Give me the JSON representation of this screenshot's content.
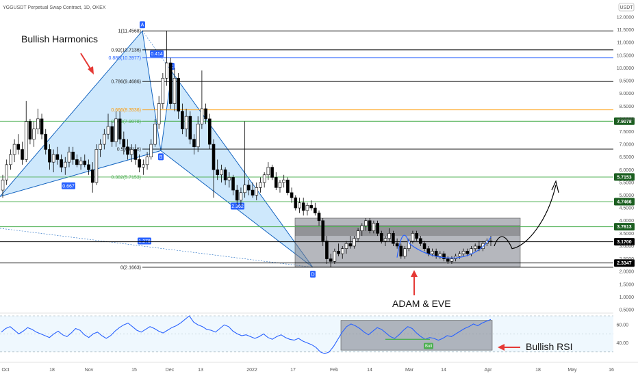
{
  "header": {
    "title": "YGGUSDT Perpetual Swap Contract, 1D, OKEX",
    "currency": "USDT"
  },
  "chart_data": {
    "type": "candlestick",
    "price_axis_ticks": [
      "12.0000",
      "11.5000",
      "11.0000",
      "10.5000",
      "10.0000",
      "9.5000",
      "9.0000",
      "8.5000",
      "8.0000",
      "7.5000",
      "7.0000",
      "6.5000",
      "6.0000",
      "5.5000",
      "5.0000",
      "4.5000",
      "4.0000",
      "3.5000",
      "3.0000",
      "2.5000",
      "2.0000",
      "1.5000",
      "1.0000",
      "0.5000"
    ],
    "rsi_axis_ticks": [
      "60.00",
      "40.00"
    ],
    "x_axis_ticks": [
      "Oct",
      "18",
      "Nov",
      "15",
      "Dec",
      "13",
      "2022",
      "17",
      "Feb",
      "14",
      "Mar",
      "14",
      "Apr",
      "18",
      "May",
      "16"
    ],
    "fib_levels": [
      {
        "label": "1(11.4568)",
        "price": 11.4568,
        "color": "#000000"
      },
      {
        "label": "0.92(10.7136)",
        "price": 10.7136,
        "color": "#000000"
      },
      {
        "label": "0.886(10.3977)",
        "price": 10.3977,
        "color": "#2962ff"
      },
      {
        "label": "0.786(9.4686)",
        "price": 9.4686,
        "color": "#000000"
      },
      {
        "label": "0.666(8.3536)",
        "price": 8.3536,
        "color": "#ff9800"
      },
      {
        "label": "0.618(7.9078)",
        "price": 7.9078,
        "color": "#4caf50"
      },
      {
        "label": "0.5(6.8116)",
        "price": 6.8116,
        "color": "#000000"
      },
      {
        "label": "0.382(5.7153)",
        "price": 5.7153,
        "color": "#4caf50"
      },
      {
        "label": "0(2.1663)",
        "price": 2.1663,
        "color": "#000000"
      }
    ],
    "horizontal_levels": [
      {
        "price": 7.9078,
        "label": "7.9078",
        "color": "#4caf50",
        "badge": "#1b5e20"
      },
      {
        "price": 5.7153,
        "label": "5.7153",
        "color": "#4caf50",
        "badge": "#1b5e20"
      },
      {
        "price": 4.7466,
        "label": "4.7466",
        "color": "#4caf50",
        "badge": "#1b5e20"
      },
      {
        "price": 3.7613,
        "label": "3.7613",
        "color": "#4caf50",
        "badge": "#1b5e20"
      },
      {
        "price": 3.17,
        "label": "3.1700",
        "color": "#000000",
        "badge": "#000000"
      },
      {
        "price": 2.3347,
        "label": "2.3347",
        "color": "#000000",
        "badge": "#000000"
      }
    ],
    "pattern_points": [
      "X",
      "A",
      "B",
      "C",
      "D"
    ],
    "ratio_labels": [
      "0.667",
      "2.362",
      "1.278",
      "0.414"
    ],
    "candles": [
      {
        "o": 5.2,
        "h": 5.8,
        "l": 4.9,
        "c": 5.6
      },
      {
        "o": 5.6,
        "h": 6.4,
        "l": 5.4,
        "c": 6.2
      },
      {
        "o": 6.2,
        "h": 6.8,
        "l": 6.0,
        "c": 6.6
      },
      {
        "o": 6.6,
        "h": 7.2,
        "l": 6.3,
        "c": 7.0
      },
      {
        "o": 7.0,
        "h": 7.4,
        "l": 6.6,
        "c": 6.8
      },
      {
        "o": 6.8,
        "h": 7.1,
        "l": 6.2,
        "c": 6.4
      },
      {
        "o": 6.4,
        "h": 8.7,
        "l": 6.3,
        "c": 7.9
      },
      {
        "o": 7.9,
        "h": 8.0,
        "l": 7.0,
        "c": 7.2
      },
      {
        "o": 7.2,
        "h": 7.9,
        "l": 6.9,
        "c": 7.6
      },
      {
        "o": 7.6,
        "h": 8.4,
        "l": 7.4,
        "c": 8.0
      },
      {
        "o": 8.0,
        "h": 8.2,
        "l": 7.2,
        "c": 7.4
      },
      {
        "o": 7.4,
        "h": 7.6,
        "l": 6.6,
        "c": 6.8
      },
      {
        "o": 6.8,
        "h": 7.0,
        "l": 6.0,
        "c": 6.3
      },
      {
        "o": 6.3,
        "h": 6.8,
        "l": 5.9,
        "c": 6.6
      },
      {
        "o": 6.6,
        "h": 6.9,
        "l": 6.2,
        "c": 6.4
      },
      {
        "o": 6.4,
        "h": 6.6,
        "l": 5.9,
        "c": 6.1
      },
      {
        "o": 6.1,
        "h": 6.5,
        "l": 5.8,
        "c": 6.3
      },
      {
        "o": 6.3,
        "h": 6.9,
        "l": 6.1,
        "c": 6.7
      },
      {
        "o": 6.7,
        "h": 6.9,
        "l": 6.2,
        "c": 6.4
      },
      {
        "o": 6.4,
        "h": 6.6,
        "l": 6.1,
        "c": 6.2
      },
      {
        "o": 6.2,
        "h": 6.5,
        "l": 6.0,
        "c": 6.35
      },
      {
        "o": 6.35,
        "h": 6.6,
        "l": 6.1,
        "c": 6.2
      },
      {
        "o": 6.2,
        "h": 6.4,
        "l": 5.8,
        "c": 6.0
      },
      {
        "o": 6.0,
        "h": 6.3,
        "l": 5.1,
        "c": 5.5
      },
      {
        "o": 5.5,
        "h": 7.0,
        "l": 5.4,
        "c": 6.8
      },
      {
        "o": 6.8,
        "h": 7.2,
        "l": 6.5,
        "c": 7.0
      },
      {
        "o": 7.0,
        "h": 7.6,
        "l": 6.8,
        "c": 7.4
      },
      {
        "o": 7.4,
        "h": 8.2,
        "l": 7.2,
        "c": 7.7
      },
      {
        "o": 7.7,
        "h": 7.9,
        "l": 6.9,
        "c": 7.1
      },
      {
        "o": 7.1,
        "h": 8.3,
        "l": 6.9,
        "c": 8.0
      },
      {
        "o": 8.0,
        "h": 8.3,
        "l": 7.0,
        "c": 7.2
      },
      {
        "o": 7.2,
        "h": 7.5,
        "l": 6.6,
        "c": 6.9
      },
      {
        "o": 6.9,
        "h": 7.2,
        "l": 6.4,
        "c": 6.6
      },
      {
        "o": 6.6,
        "h": 7.0,
        "l": 6.3,
        "c": 6.8
      },
      {
        "o": 6.8,
        "h": 7.0,
        "l": 6.2,
        "c": 6.4
      },
      {
        "o": 6.4,
        "h": 6.6,
        "l": 5.9,
        "c": 6.1
      },
      {
        "o": 6.1,
        "h": 6.4,
        "l": 5.8,
        "c": 6.2
      },
      {
        "o": 6.2,
        "h": 6.7,
        "l": 6.0,
        "c": 6.5
      },
      {
        "o": 6.5,
        "h": 7.2,
        "l": 6.4,
        "c": 7.0
      },
      {
        "o": 7.0,
        "h": 8.0,
        "l": 6.9,
        "c": 7.8
      },
      {
        "o": 7.8,
        "h": 8.9,
        "l": 7.6,
        "c": 8.6
      },
      {
        "o": 8.6,
        "h": 9.8,
        "l": 8.4,
        "c": 9.6
      },
      {
        "o": 9.6,
        "h": 11.4568,
        "l": 9.3,
        "c": 10.2
      },
      {
        "o": 10.2,
        "h": 10.4,
        "l": 8.4,
        "c": 8.6
      },
      {
        "o": 8.6,
        "h": 10.0,
        "l": 8.3,
        "c": 9.6
      },
      {
        "o": 9.6,
        "h": 9.8,
        "l": 8.0,
        "c": 8.3
      },
      {
        "o": 8.3,
        "h": 8.6,
        "l": 7.4,
        "c": 7.6
      },
      {
        "o": 7.6,
        "h": 8.4,
        "l": 7.3,
        "c": 8.1
      },
      {
        "o": 8.1,
        "h": 8.3,
        "l": 7.0,
        "c": 7.2
      },
      {
        "o": 7.2,
        "h": 7.4,
        "l": 6.6,
        "c": 6.9
      },
      {
        "o": 6.9,
        "h": 8.1,
        "l": 6.7,
        "c": 7.8
      },
      {
        "o": 7.8,
        "h": 9.9,
        "l": 7.6,
        "c": 8.4
      },
      {
        "o": 8.4,
        "h": 8.6,
        "l": 7.8,
        "c": 8.0
      },
      {
        "o": 8.0,
        "h": 8.2,
        "l": 6.8,
        "c": 7.0
      },
      {
        "o": 7.0,
        "h": 7.2,
        "l": 4.9,
        "c": 6.0
      },
      {
        "o": 6.0,
        "h": 6.4,
        "l": 5.6,
        "c": 5.8
      },
      {
        "o": 5.8,
        "h": 6.2,
        "l": 5.5,
        "c": 6.0
      },
      {
        "o": 6.0,
        "h": 6.1,
        "l": 5.4,
        "c": 5.6
      },
      {
        "o": 5.6,
        "h": 5.9,
        "l": 5.3,
        "c": 5.7
      },
      {
        "o": 5.7,
        "h": 5.8,
        "l": 5.0,
        "c": 5.2
      },
      {
        "o": 5.2,
        "h": 5.4,
        "l": 4.6,
        "c": 4.8
      },
      {
        "o": 4.8,
        "h": 5.3,
        "l": 4.6,
        "c": 5.1
      },
      {
        "o": 5.1,
        "h": 7.9,
        "l": 4.9,
        "c": 5.4
      },
      {
        "o": 5.4,
        "h": 5.6,
        "l": 5.0,
        "c": 5.2
      },
      {
        "o": 5.2,
        "h": 5.5,
        "l": 4.9,
        "c": 5.0
      },
      {
        "o": 5.0,
        "h": 5.5,
        "l": 4.8,
        "c": 5.3
      },
      {
        "o": 5.3,
        "h": 5.7,
        "l": 5.1,
        "c": 5.5
      },
      {
        "o": 5.5,
        "h": 5.9,
        "l": 5.3,
        "c": 5.8
      },
      {
        "o": 5.8,
        "h": 6.3,
        "l": 5.6,
        "c": 6.1
      },
      {
        "o": 6.1,
        "h": 6.2,
        "l": 5.6,
        "c": 5.7
      },
      {
        "o": 5.7,
        "h": 5.9,
        "l": 5.2,
        "c": 5.3
      },
      {
        "o": 5.3,
        "h": 5.6,
        "l": 5.1,
        "c": 5.5
      },
      {
        "o": 5.5,
        "h": 5.8,
        "l": 5.3,
        "c": 5.6
      },
      {
        "o": 5.6,
        "h": 5.7,
        "l": 5.0,
        "c": 5.1
      },
      {
        "o": 5.1,
        "h": 5.3,
        "l": 4.7,
        "c": 4.9
      },
      {
        "o": 4.9,
        "h": 5.0,
        "l": 4.4,
        "c": 4.5
      },
      {
        "o": 4.5,
        "h": 4.9,
        "l": 4.3,
        "c": 4.7
      },
      {
        "o": 4.7,
        "h": 4.9,
        "l": 4.2,
        "c": 4.4
      },
      {
        "o": 4.4,
        "h": 4.7,
        "l": 4.2,
        "c": 4.6
      },
      {
        "o": 4.6,
        "h": 4.8,
        "l": 4.4,
        "c": 4.5
      },
      {
        "o": 4.5,
        "h": 4.7,
        "l": 4.2,
        "c": 4.3
      },
      {
        "o": 4.3,
        "h": 4.4,
        "l": 3.8,
        "c": 4.0
      },
      {
        "o": 4.0,
        "h": 4.1,
        "l": 3.0,
        "c": 3.2
      },
      {
        "o": 3.2,
        "h": 3.4,
        "l": 2.3,
        "c": 2.5
      },
      {
        "o": 2.5,
        "h": 2.7,
        "l": 2.1663,
        "c": 2.4
      },
      {
        "o": 2.4,
        "h": 2.9,
        "l": 2.3,
        "c": 2.8
      },
      {
        "o": 2.8,
        "h": 3.1,
        "l": 2.6,
        "c": 2.7
      },
      {
        "o": 2.7,
        "h": 3.0,
        "l": 2.5,
        "c": 2.9
      },
      {
        "o": 2.9,
        "h": 3.2,
        "l": 2.7,
        "c": 3.1
      },
      {
        "o": 3.1,
        "h": 3.4,
        "l": 2.9,
        "c": 3.0
      },
      {
        "o": 3.0,
        "h": 3.4,
        "l": 2.9,
        "c": 3.3
      },
      {
        "o": 3.3,
        "h": 3.7,
        "l": 3.2,
        "c": 3.6
      },
      {
        "o": 3.6,
        "h": 3.9,
        "l": 3.4,
        "c": 3.8
      },
      {
        "o": 3.8,
        "h": 4.1,
        "l": 3.6,
        "c": 4.0
      },
      {
        "o": 4.0,
        "h": 4.1,
        "l": 3.5,
        "c": 3.6
      },
      {
        "o": 3.6,
        "h": 4.0,
        "l": 3.5,
        "c": 3.9
      },
      {
        "o": 3.9,
        "h": 4.0,
        "l": 3.4,
        "c": 3.5
      },
      {
        "o": 3.5,
        "h": 3.6,
        "l": 3.1,
        "c": 3.2
      },
      {
        "o": 3.2,
        "h": 3.4,
        "l": 3.0,
        "c": 3.3
      },
      {
        "o": 3.3,
        "h": 3.7,
        "l": 3.2,
        "c": 3.5
      },
      {
        "o": 3.5,
        "h": 3.6,
        "l": 3.0,
        "c": 3.1
      },
      {
        "o": 3.1,
        "h": 3.3,
        "l": 2.9,
        "c": 3.0
      },
      {
        "o": 3.0,
        "h": 3.1,
        "l": 2.5,
        "c": 2.6
      },
      {
        "o": 2.6,
        "h": 3.0,
        "l": 2.5,
        "c": 2.9
      },
      {
        "o": 2.9,
        "h": 3.3,
        "l": 2.8,
        "c": 3.2
      },
      {
        "o": 3.2,
        "h": 3.6,
        "l": 3.1,
        "c": 3.5
      },
      {
        "o": 3.5,
        "h": 3.6,
        "l": 3.2,
        "c": 3.3
      },
      {
        "o": 3.3,
        "h": 3.4,
        "l": 3.0,
        "c": 3.1
      },
      {
        "o": 3.1,
        "h": 3.2,
        "l": 2.8,
        "c": 2.9
      },
      {
        "o": 2.9,
        "h": 3.0,
        "l": 2.6,
        "c": 2.7
      },
      {
        "o": 2.7,
        "h": 2.9,
        "l": 2.6,
        "c": 2.8
      },
      {
        "o": 2.8,
        "h": 2.9,
        "l": 2.5,
        "c": 2.6
      },
      {
        "o": 2.6,
        "h": 2.8,
        "l": 2.5,
        "c": 2.7
      },
      {
        "o": 2.7,
        "h": 2.8,
        "l": 2.4,
        "c": 2.5
      },
      {
        "o": 2.5,
        "h": 2.6,
        "l": 2.3,
        "c": 2.4
      },
      {
        "o": 2.4,
        "h": 2.6,
        "l": 2.3,
        "c": 2.5
      },
      {
        "o": 2.5,
        "h": 2.7,
        "l": 2.4,
        "c": 2.6
      },
      {
        "o": 2.6,
        "h": 2.8,
        "l": 2.5,
        "c": 2.7
      },
      {
        "o": 2.7,
        "h": 2.9,
        "l": 2.6,
        "c": 2.8
      },
      {
        "o": 2.8,
        "h": 2.9,
        "l": 2.6,
        "c": 2.7
      },
      {
        "o": 2.7,
        "h": 3.0,
        "l": 2.6,
        "c": 2.9
      },
      {
        "o": 2.9,
        "h": 3.1,
        "l": 2.8,
        "c": 3.0
      },
      {
        "o": 3.0,
        "h": 3.2,
        "l": 2.8,
        "c": 2.9
      },
      {
        "o": 2.9,
        "h": 3.2,
        "l": 2.8,
        "c": 3.1
      },
      {
        "o": 3.1,
        "h": 3.3,
        "l": 3.0,
        "c": 3.2
      },
      {
        "o": 3.2,
        "h": 3.4,
        "l": 3.0,
        "c": 3.17
      }
    ],
    "rsi_values": [
      52,
      56,
      58,
      54,
      50,
      53,
      57,
      55,
      52,
      50,
      48,
      46,
      50,
      53,
      49,
      47,
      51,
      56,
      54,
      49,
      46,
      50,
      52,
      48,
      45,
      48,
      53,
      57,
      60,
      62,
      58,
      54,
      52,
      55,
      58,
      56,
      53,
      51,
      54,
      57,
      59,
      62,
      66,
      70,
      63,
      60,
      58,
      55,
      54,
      52,
      56,
      60,
      58,
      53,
      50,
      48,
      49,
      47,
      45,
      47,
      50,
      46,
      44,
      47,
      49,
      46,
      44,
      43,
      45,
      42,
      40,
      38,
      35,
      30,
      28,
      30,
      36,
      44,
      52,
      58,
      61,
      59,
      56,
      52,
      49,
      53,
      57,
      55,
      51,
      47,
      45,
      49,
      54,
      58,
      56,
      51,
      47,
      44,
      46,
      45,
      43,
      45,
      48,
      47,
      50,
      53,
      56,
      58,
      61,
      59,
      62,
      64,
      66
    ],
    "annotations": {
      "bullish_harmonics": "Bullish Harmonics",
      "adam_eve": "ADAM & EVE",
      "bullish_rsi": "Bullish RSI",
      "bull_badge": "Bull"
    }
  }
}
